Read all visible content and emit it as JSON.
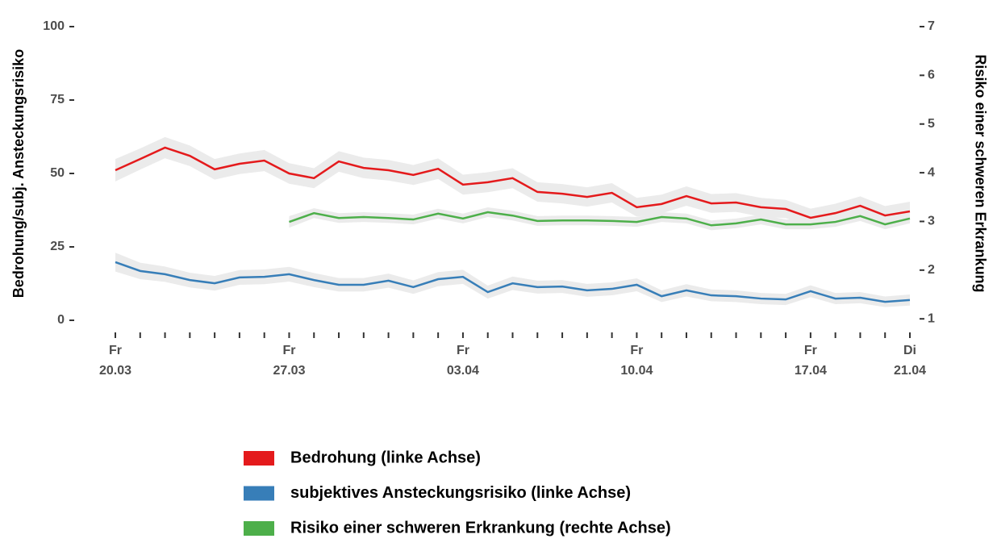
{
  "chart_data": {
    "type": "line",
    "ylabel": "Bedrohung/subj. Ansteckungsrisiko",
    "y2label": "Risiko einer schweren Erkrankung",
    "categories": [
      "20.03",
      null,
      null,
      null,
      null,
      null,
      null,
      "27.03",
      null,
      null,
      null,
      null,
      null,
      null,
      "03.04",
      null,
      null,
      null,
      null,
      null,
      null,
      "10.04",
      null,
      null,
      null,
      null,
      null,
      null,
      "17.04",
      null,
      null,
      null,
      "21.04"
    ],
    "category_weekdays": [
      "Fr",
      null,
      null,
      null,
      null,
      null,
      null,
      "Fr",
      null,
      null,
      null,
      null,
      null,
      null,
      "Fr",
      null,
      null,
      null,
      null,
      null,
      null,
      "Fr",
      null,
      null,
      null,
      null,
      null,
      null,
      "Fr",
      null,
      null,
      null,
      "Di"
    ],
    "ylim": [
      0,
      100
    ],
    "yticks": [
      0,
      25,
      50,
      75,
      100
    ],
    "y2lim": [
      0.97,
      7
    ],
    "y2ticks": [
      1,
      2,
      3,
      4,
      5,
      6,
      7
    ],
    "band_color": "#ebebeb",
    "series": [
      {
        "name": "Bedrohung (linke Achse)",
        "color": "#e41a1c",
        "axis": "y",
        "values": [
          51.1,
          54.9,
          58.8,
          56.0,
          51.4,
          53.3,
          54.4,
          50.0,
          48.4,
          54.1,
          51.9,
          51.1,
          49.5,
          51.6,
          46.2,
          47.0,
          48.4,
          43.7,
          43.1,
          42.0,
          43.4,
          38.5,
          39.6,
          42.3,
          39.8,
          40.1,
          38.5,
          37.9,
          34.9,
          36.5,
          39.0,
          35.7,
          37.1
        ],
        "errors": [
          3.8,
          3.6,
          3.6,
          3.5,
          3.5,
          3.5,
          3.6,
          3.5,
          3.4,
          3.5,
          3.5,
          3.5,
          3.4,
          3.5,
          3.4,
          3.4,
          3.4,
          3.3,
          3.3,
          3.3,
          3.3,
          3.2,
          3.2,
          3.3,
          3.2,
          3.2,
          3.2,
          3.1,
          3.1,
          3.2,
          3.2,
          3.2,
          3.3
        ]
      },
      {
        "name": "subjektives Ansteckungsrisiko (linke Achse)",
        "color": "#377eb8",
        "axis": "y",
        "values": [
          19.8,
          16.8,
          15.7,
          13.7,
          12.6,
          14.6,
          14.8,
          15.7,
          13.7,
          12.1,
          12.1,
          13.5,
          11.3,
          14.0,
          14.8,
          9.6,
          12.6,
          11.3,
          11.5,
          10.2,
          10.7,
          12.1,
          8.2,
          10.2,
          8.5,
          8.2,
          7.4,
          7.1,
          9.9,
          7.4,
          7.7,
          6.3,
          6.9
        ],
        "errors": [
          3.2,
          2.8,
          2.6,
          2.5,
          2.5,
          2.5,
          2.5,
          2.5,
          2.4,
          2.3,
          2.3,
          2.4,
          2.3,
          2.4,
          2.4,
          2.2,
          2.3,
          2.2,
          2.2,
          2.2,
          2.2,
          2.2,
          2.0,
          2.1,
          2.0,
          2.0,
          1.9,
          1.9,
          2.0,
          1.9,
          1.9,
          1.8,
          1.9
        ]
      },
      {
        "name": "Risiko einer schweren Erkrankung (rechte Achse)",
        "color": "#4daf4a",
        "axis": "y2",
        "values": [
          null,
          null,
          null,
          null,
          null,
          null,
          null,
          2.99,
          3.17,
          3.07,
          3.09,
          3.07,
          3.04,
          3.16,
          3.06,
          3.19,
          3.12,
          3.01,
          3.02,
          3.02,
          3.01,
          2.99,
          3.09,
          3.06,
          2.92,
          2.96,
          3.04,
          2.94,
          2.94,
          2.99,
          3.11,
          2.94,
          3.06
        ],
        "errors": [
          null,
          null,
          null,
          null,
          null,
          null,
          null,
          0.12,
          0.1,
          0.1,
          0.1,
          0.1,
          0.1,
          0.1,
          0.1,
          0.1,
          0.1,
          0.1,
          0.1,
          0.1,
          0.1,
          0.1,
          0.1,
          0.1,
          0.1,
          0.1,
          0.1,
          0.1,
          0.1,
          0.1,
          0.1,
          0.1,
          0.1
        ]
      }
    ]
  }
}
